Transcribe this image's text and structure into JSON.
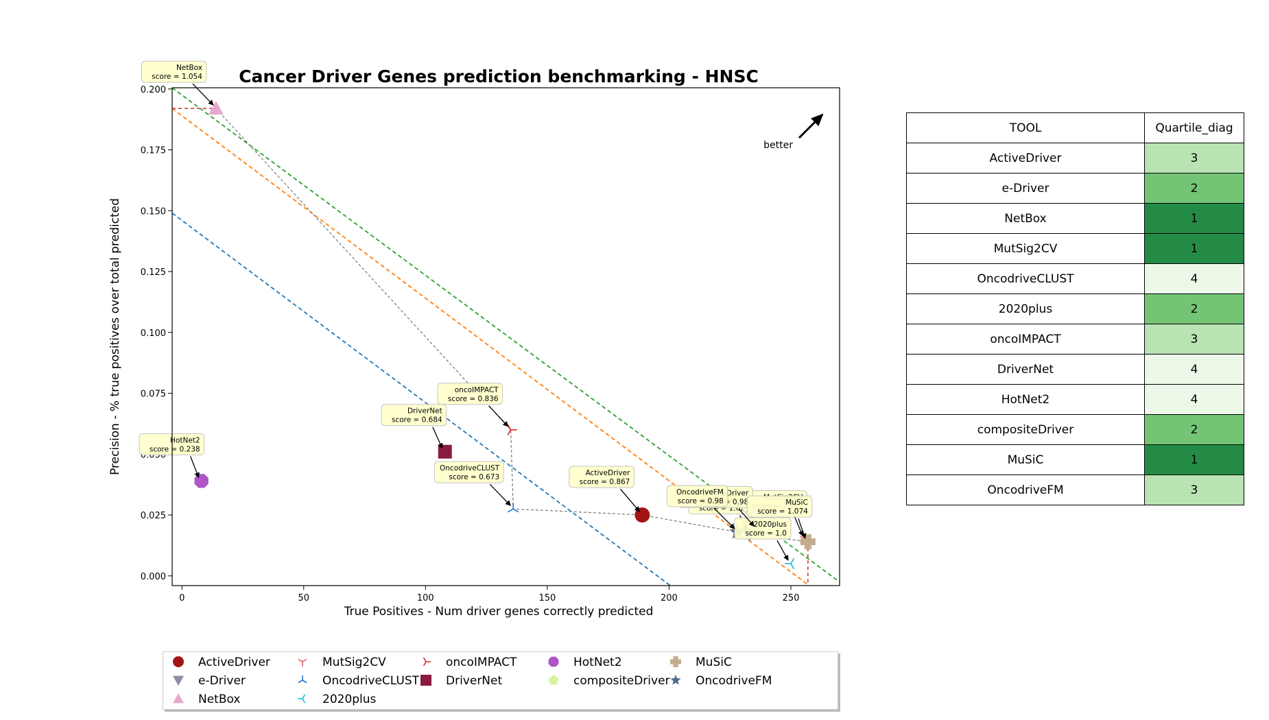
{
  "chart_data": {
    "type": "scatter",
    "title": "Cancer Driver Genes prediction benchmarking - HNSC",
    "xlabel": "True Positives - Num driver genes correctly predicted",
    "ylabel": "Precision - % true positives over total predicted",
    "xlim": [
      -4,
      270
    ],
    "ylim": [
      -0.004,
      0.2005
    ],
    "xticks": [
      0,
      50,
      100,
      150,
      200,
      250
    ],
    "xtick_labels": [
      "0",
      "50",
      "100",
      "150",
      "200",
      "250"
    ],
    "yticks": [
      0.0,
      0.025,
      0.05,
      0.075,
      0.1,
      0.125,
      0.15,
      0.175,
      0.2
    ],
    "ytick_labels": [
      "0.000",
      "0.025",
      "0.050",
      "0.075",
      "0.100",
      "0.125",
      "0.150",
      "0.175",
      "0.200"
    ],
    "better_label": "better",
    "grid": false,
    "legend_position": "bottom",
    "series": [
      {
        "name": "ActiveDriver",
        "x": 189,
        "y": 0.025,
        "marker": "circle",
        "color": "#a31515",
        "annotation": "ActiveDriver\nscore = 0.867"
      },
      {
        "name": "e-Driver",
        "x": 233,
        "y": 0.017,
        "marker": "triangle-down",
        "color": "#8e8ea6",
        "annotation": "e-Driver\nscore = 1.021"
      },
      {
        "name": "NetBox",
        "x": 14,
        "y": 0.192,
        "marker": "triangle-up",
        "color": "#e7a8cf",
        "annotation": "NetBox\nscore = 1.054"
      },
      {
        "name": "MutSig2CV",
        "x": 256,
        "y": 0.015,
        "marker": "tri-down",
        "color": "#e06666",
        "annotation": "MutSig2CV\nscore = 1.067"
      },
      {
        "name": "OncodriveCLUST",
        "x": 136,
        "y": 0.0275,
        "marker": "tri-up",
        "color": "#1f77d0",
        "annotation": "OncodriveCLUST\nscore = 0.673"
      },
      {
        "name": "2020plus",
        "x": 250,
        "y": 0.005,
        "marker": "tri-left",
        "color": "#17becf",
        "annotation": "2020plus\nscore = 1.0"
      },
      {
        "name": "oncoIMPACT",
        "x": 135,
        "y": 0.06,
        "marker": "tri-right",
        "color": "#d62728",
        "annotation": "oncoIMPACT\nscore = 0.836"
      },
      {
        "name": "DriverNet",
        "x": 108,
        "y": 0.051,
        "marker": "square",
        "color": "#8b1a42",
        "annotation": "DriverNet\nscore = 0.684"
      },
      {
        "name": "HotNet2",
        "x": 8,
        "y": 0.039,
        "marker": "octagon",
        "color": "#b055c8",
        "annotation": "HotNet2\nscore = 0.238"
      },
      {
        "name": "compositeDriver",
        "x": 236,
        "y": 0.019,
        "marker": "pentagon",
        "color": "#d9f2a0",
        "annotation": "compositeDriver\nscore = 0.98"
      },
      {
        "name": "MuSiC",
        "x": 257,
        "y": 0.014,
        "marker": "plus",
        "color": "#c2ad8c",
        "annotation": "MuSiC\nscore = 1.074"
      },
      {
        "name": "OncodriveFM",
        "x": 228,
        "y": 0.018,
        "marker": "star",
        "color": "#4d6e8f",
        "annotation": "OncodriveFM\nscore = 0.98"
      }
    ],
    "pareto_frontier": [
      [
        14,
        0.192
      ],
      [
        135,
        0.06
      ],
      [
        136,
        0.0275
      ],
      [
        189,
        0.025
      ],
      [
        228,
        0.018
      ],
      [
        233,
        0.017
      ],
      [
        257,
        0.014
      ]
    ],
    "quartile_lines": [
      {
        "color": "#1f77b4",
        "x0": -4,
        "y0": 0.149,
        "x1": 200.5,
        "y1": -0.004
      },
      {
        "color": "#ff7f0e",
        "x0": -4,
        "y0": 0.192,
        "x1": 257.5,
        "y1": -0.004
      },
      {
        "color": "#2ca02c",
        "x0": -4,
        "y0": 0.2005,
        "x1": 270,
        "y1": -0.0025
      }
    ],
    "optimal_point": {
      "x": 257,
      "y": 0.192,
      "color": "#d62728"
    }
  },
  "table": {
    "headers": [
      "TOOL",
      "Quartile_diag"
    ],
    "rows": [
      {
        "tool": "ActiveDriver",
        "quartile": "3",
        "color": "#b9e3b3"
      },
      {
        "tool": "e-Driver",
        "quartile": "2",
        "color": "#74c476"
      },
      {
        "tool": "NetBox",
        "quartile": "1",
        "color": "#238b45"
      },
      {
        "tool": "MutSig2CV",
        "quartile": "1",
        "color": "#238b45"
      },
      {
        "tool": "OncodriveCLUST",
        "quartile": "4",
        "color": "#edf8e9"
      },
      {
        "tool": "2020plus",
        "quartile": "2",
        "color": "#74c476"
      },
      {
        "tool": "oncoIMPACT",
        "quartile": "3",
        "color": "#b9e3b3"
      },
      {
        "tool": "DriverNet",
        "quartile": "4",
        "color": "#edf8e9"
      },
      {
        "tool": "HotNet2",
        "quartile": "4",
        "color": "#edf8e9"
      },
      {
        "tool": "compositeDriver",
        "quartile": "2",
        "color": "#74c476"
      },
      {
        "tool": "MuSiC",
        "quartile": "1",
        "color": "#238b45"
      },
      {
        "tool": "OncodriveFM",
        "quartile": "3",
        "color": "#b9e3b3"
      }
    ]
  }
}
